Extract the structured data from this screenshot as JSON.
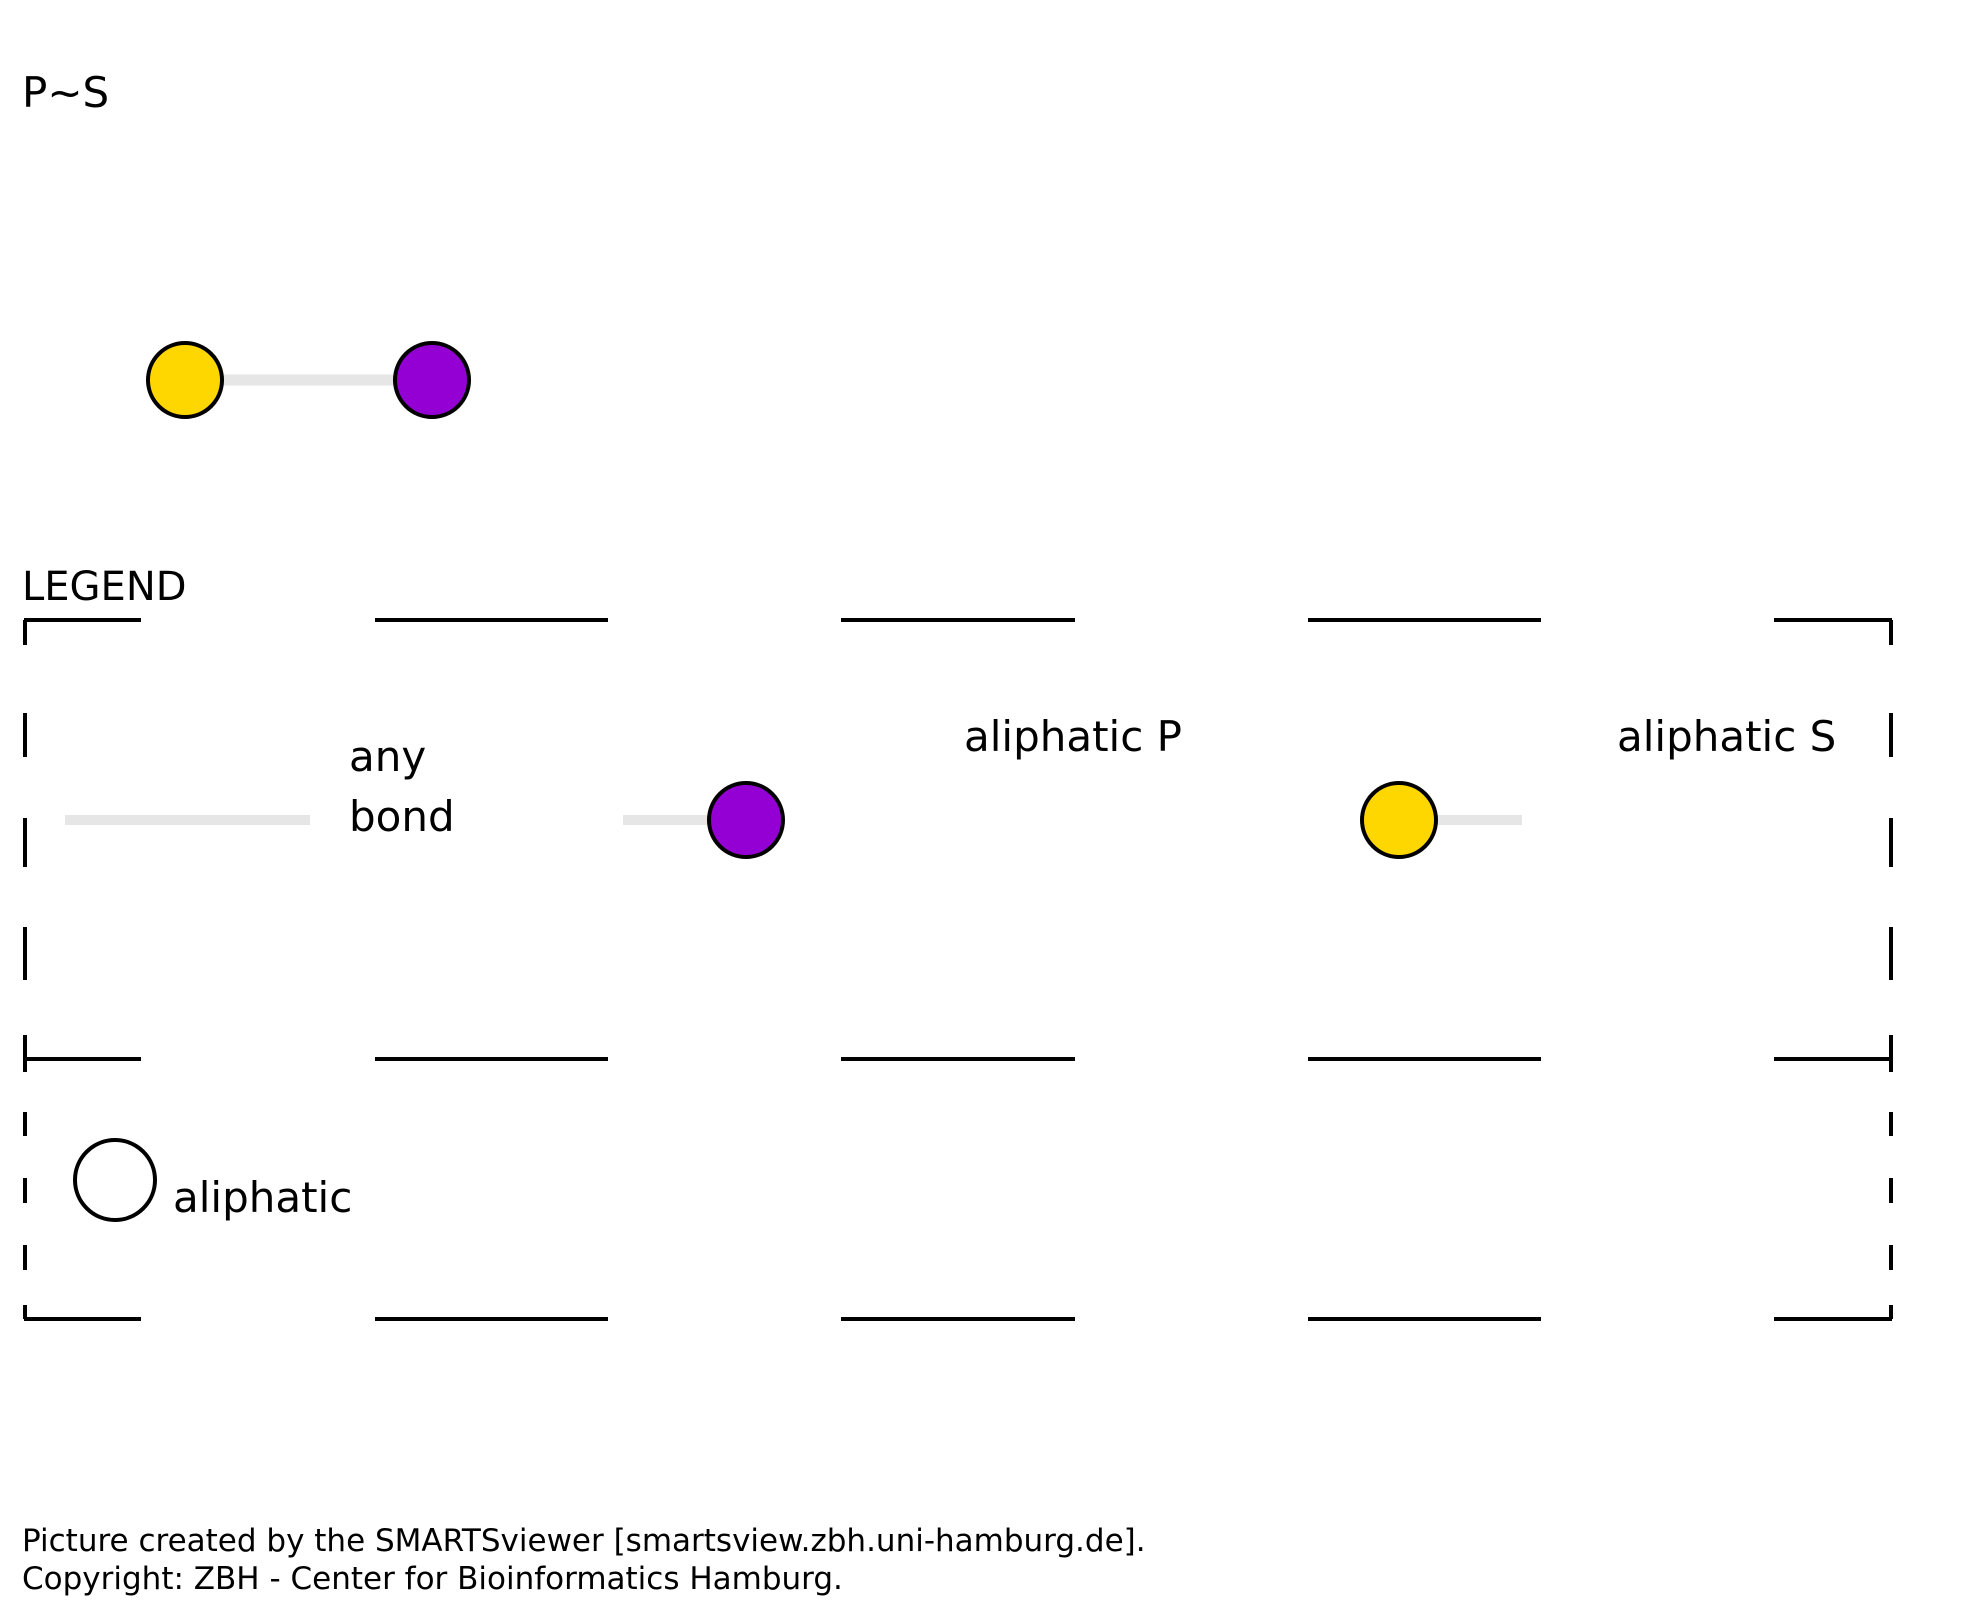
{
  "title": "P~S",
  "colors": {
    "sulfur": "#FFD700",
    "phosphorus": "#9400D3",
    "bond": "#E6E6E6",
    "outline": "#000000",
    "aliphatic_fill": "#FFFFFF"
  },
  "molecule": {
    "atoms": [
      {
        "name": "sulfur-atom",
        "element": "S",
        "color_key": "sulfur"
      },
      {
        "name": "phosphorus-atom",
        "element": "P",
        "color_key": "phosphorus"
      }
    ],
    "bond": "any bond"
  },
  "legend": {
    "title": "LEGEND",
    "any_bond_line1": "any",
    "any_bond_line2": "bond",
    "aliphatic_p": "aliphatic P",
    "aliphatic_s": "aliphatic S",
    "aliphatic": "aliphatic"
  },
  "footer": {
    "line1": "Picture created by the SMARTSviewer [smartsview.zbh.uni-hamburg.de].",
    "line2": "Copyright: ZBH - Center for Bioinformatics Hamburg."
  }
}
